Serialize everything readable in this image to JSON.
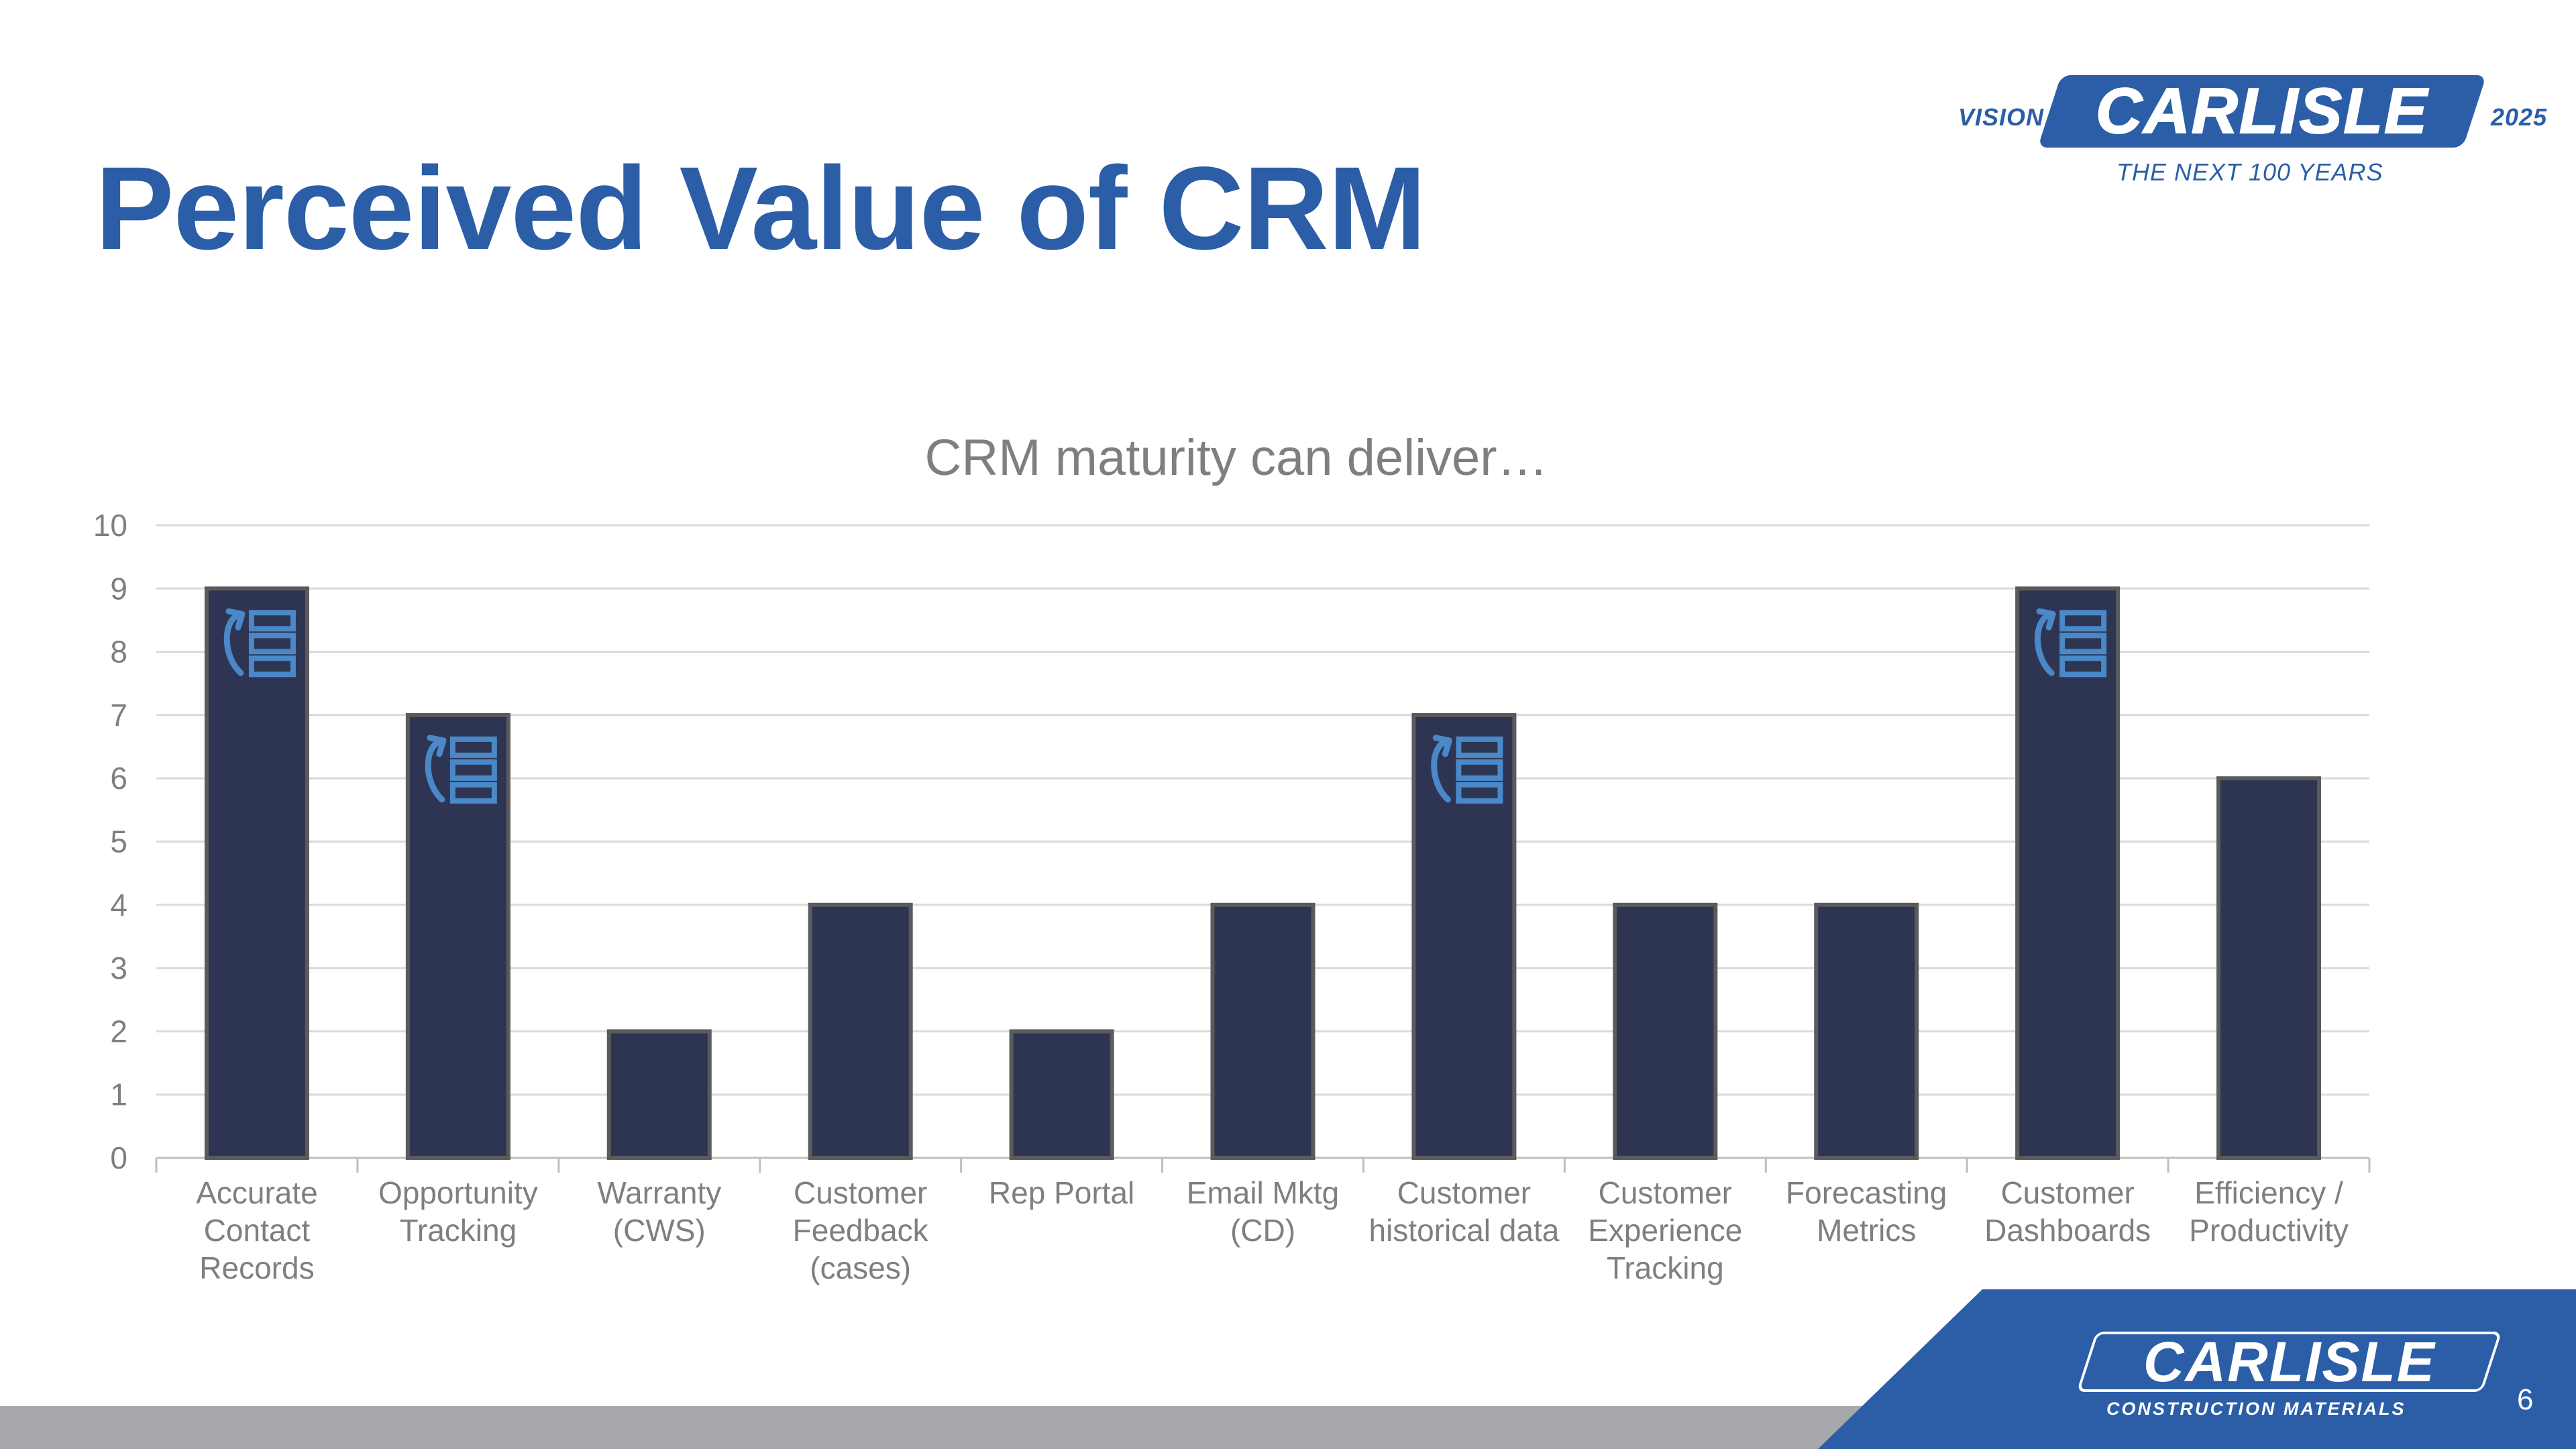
{
  "slide": {
    "title": "Perceived Value of CRM",
    "page_number": "6"
  },
  "logo_top": {
    "prefix": "VISION",
    "wordmark": "CARLISLE",
    "year": "2025",
    "tagline": "THE NEXT 100 YEARS"
  },
  "logo_footer": {
    "wordmark": "CARLISLE",
    "subtitle": "CONSTRUCTION MATERIALS"
  },
  "colors": {
    "title": "#2b5ea7",
    "bar_fill": "#2e3553",
    "bar_stroke": "#5b5b5b",
    "icon": "#4a88c8",
    "axis_text": "#7f7f7f",
    "gridline": "#d9d9d9",
    "footer_gray": "#a6a8ab",
    "brand_blue": "#2b5ea7"
  },
  "chart_data": {
    "type": "bar",
    "title": "CRM maturity can deliver…",
    "categories": [
      [
        "Accurate",
        "Contact",
        "Records"
      ],
      [
        "Opportunity",
        "Tracking"
      ],
      [
        "Warranty",
        "(CWS)"
      ],
      [
        "Customer",
        "Feedback",
        "(cases)"
      ],
      [
        "Rep Portal"
      ],
      [
        "Email Mktg",
        "(CD)"
      ],
      [
        "Customer",
        "historical data"
      ],
      [
        "Customer",
        "Experience",
        "Tracking"
      ],
      [
        "Forecasting",
        "Metrics"
      ],
      [
        "Customer",
        "Dashboards"
      ],
      [
        "Efficiency /",
        "Productivity"
      ]
    ],
    "values": [
      9,
      7,
      2,
      4,
      2,
      4,
      7,
      4,
      4,
      9,
      6
    ],
    "bar_icon": "share-flow-icon",
    "icon_bars": [
      0,
      1,
      6,
      9
    ],
    "ylim": [
      0,
      10
    ],
    "yticks": [
      "0",
      "1",
      "2",
      "3",
      "4",
      "5",
      "6",
      "7",
      "8",
      "9",
      "10"
    ],
    "grid": true,
    "legend": "none"
  }
}
